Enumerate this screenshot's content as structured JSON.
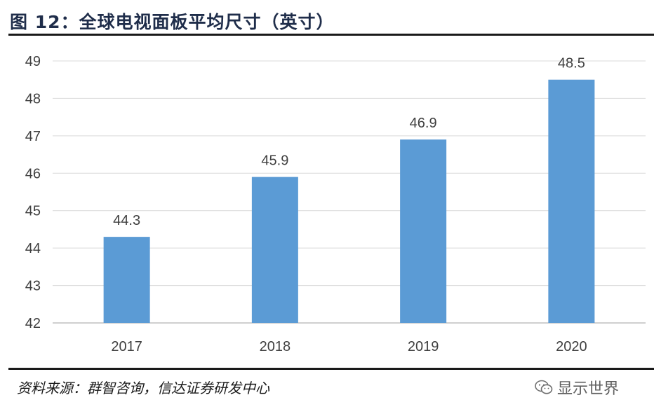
{
  "figure": {
    "title": "图 12：全球电视面板平均尺寸（英寸）",
    "source": "资料来源：群智咨询，信达证券研发中心",
    "watermark": "显示世界"
  },
  "chart_data": {
    "type": "bar",
    "categories": [
      "2017",
      "2018",
      "2019",
      "2020"
    ],
    "values": [
      44.3,
      45.9,
      46.9,
      48.5
    ],
    "data_labels": [
      "44.3",
      "45.9",
      "46.9",
      "48.5"
    ],
    "ylim": [
      42,
      49
    ],
    "yticks": [
      "42",
      "43",
      "44",
      "45",
      "46",
      "47",
      "48",
      "49"
    ],
    "grid": true,
    "bar_color": "#5b9bd5",
    "grid_color": "#d9d9d9",
    "axis_color": "#bfbfbf"
  }
}
